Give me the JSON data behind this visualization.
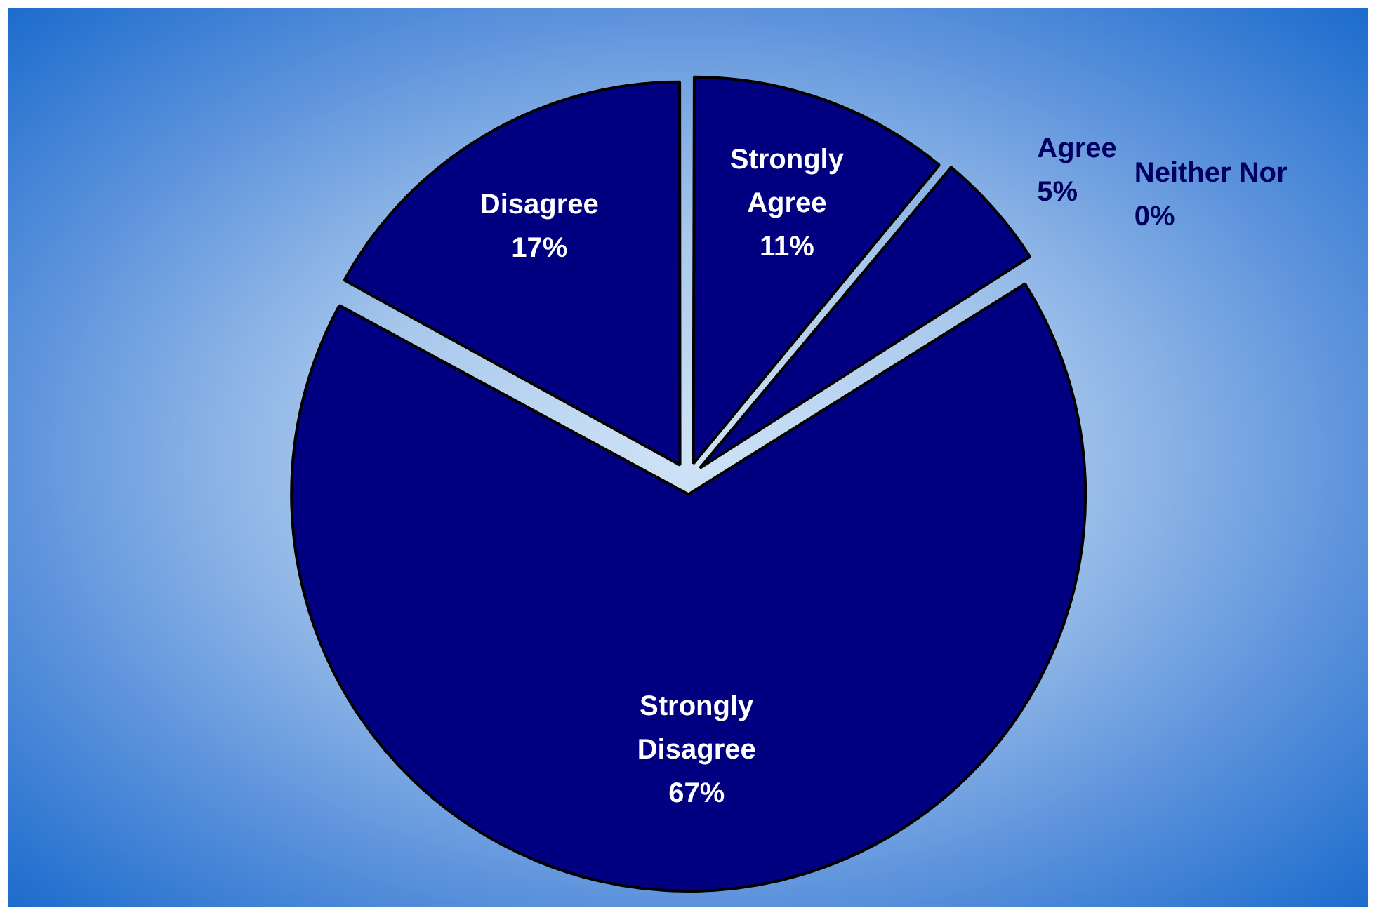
{
  "chart_data": {
    "type": "pie",
    "categories": [
      "Strongly Agree",
      "Agree",
      "Neither Nor",
      "Strongly Disagree",
      "Disagree"
    ],
    "values": [
      11,
      5,
      0,
      67,
      17
    ],
    "value_labels": [
      "11%",
      "5%",
      "0%",
      "67%",
      "17%"
    ],
    "colors": [
      "#000080",
      "#000080",
      "#000080",
      "#000080",
      "#000080"
    ],
    "legend": false
  }
}
